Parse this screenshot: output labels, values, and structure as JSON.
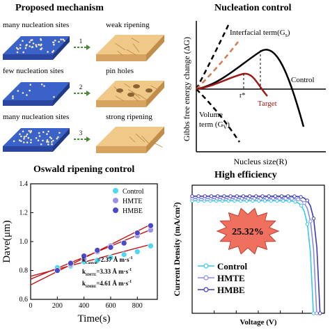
{
  "panels": {
    "mechanism": {
      "title": "Proposed mechanism",
      "rows": [
        {
          "left_label": "many nucleation sites",
          "step": "1",
          "right_label": "weak ripening"
        },
        {
          "left_label": "few nucleation sites",
          "step": "2",
          "right_label": "pin holes"
        },
        {
          "left_label": "many nucleation sites",
          "step": "3",
          "right_label": "strong ripening"
        }
      ]
    },
    "nucleation": {
      "title": "Nucleation control",
      "ylabel": "Gibbs free energy change (ΔG)",
      "xlabel": "Nucleus size(R)",
      "interfacial": "Interfacial term(G",
      "interfacial_sub": "s",
      "volume_line1": "Volume",
      "volume_line2": "term (G",
      "volume_sub": "V",
      "rstar": "r*",
      "control": "Control",
      "target": "Target"
    },
    "ostwald": {
      "title": "Oswald ripening control",
      "ylabel": "Dave(μm)",
      "xlabel": "Time(s)",
      "legend": [
        "Control",
        "HMTE",
        "HMBE"
      ],
      "k_labels": [
        {
          "k": "k",
          "sub": "Control",
          "val": "=2.37 Å m·s"
        },
        {
          "k": "k",
          "sub": "HMTE",
          "val": "=3.33 Å m·s"
        },
        {
          "k": "k",
          "sub": "HMBE",
          "val": "=4.61 Å m·s"
        }
      ],
      "k_sup": "-1"
    },
    "efficiency": {
      "title": "High efficiency",
      "ylabel": "Current Density (mA/cm²)",
      "xlabel": "Voltage (V)",
      "badge": "25.32%",
      "legend": [
        "Control",
        "HMTE",
        "HMBE"
      ]
    }
  },
  "chart_data": [
    {
      "type": "scatter",
      "title": "Oswald ripening control",
      "xlabel": "Time(s)",
      "ylabel": "Dave(μm)",
      "xlim": [
        0,
        950
      ],
      "ylim": [
        0.6,
        1.4
      ],
      "xticks": [
        0,
        200,
        400,
        600,
        800
      ],
      "yticks": [
        0.6,
        0.8,
        1.0,
        1.2,
        1.4
      ],
      "series": [
        {
          "name": "Control",
          "color": "#4fd8f0",
          "x": [
            200,
            300,
            400,
            500,
            600,
            700,
            800,
            900
          ],
          "y": [
            0.82,
            0.83,
            0.86,
            0.87,
            0.89,
            0.91,
            0.93,
            0.97
          ],
          "fit": [
            0.76,
            0.000245
          ]
        },
        {
          "name": "HMTE",
          "color": "#9b90e8",
          "x": [
            200,
            300,
            400,
            500,
            600,
            700,
            800,
            900
          ],
          "y": [
            0.8,
            0.84,
            0.88,
            0.93,
            0.97,
            0.99,
            1.04,
            1.08
          ],
          "fit": [
            0.74,
            0.00038
          ]
        },
        {
          "name": "HMBE",
          "color": "#4a4ac8",
          "x": [
            200,
            300,
            400,
            500,
            600,
            700,
            800,
            900
          ],
          "y": [
            0.8,
            0.85,
            0.9,
            0.94,
            0.96,
            0.99,
            1.06,
            1.11
          ],
          "fit": [
            0.7,
            0.000465
          ]
        }
      ]
    },
    {
      "type": "line",
      "title": "High efficiency",
      "xlabel": "Voltage (V)",
      "ylabel": "Current Density (mA/cm²)",
      "xlim": [
        0.0,
        1.2
      ],
      "ylim": [
        0,
        28
      ],
      "xticks": [
        0.0,
        0.2,
        0.4,
        0.6,
        0.8,
        1.0,
        1.2
      ],
      "series": [
        {
          "name": "Control",
          "color": "#38c8e8",
          "jsc": 24.6,
          "voc": 1.1,
          "knee": 0.92
        },
        {
          "name": "HMTE",
          "color": "#8a8ae0",
          "jsc": 25.1,
          "voc": 1.13,
          "knee": 0.95
        },
        {
          "name": "HMBE",
          "color": "#3a3ab8",
          "jsc": 25.6,
          "voc": 1.16,
          "knee": 0.98
        }
      ]
    }
  ]
}
